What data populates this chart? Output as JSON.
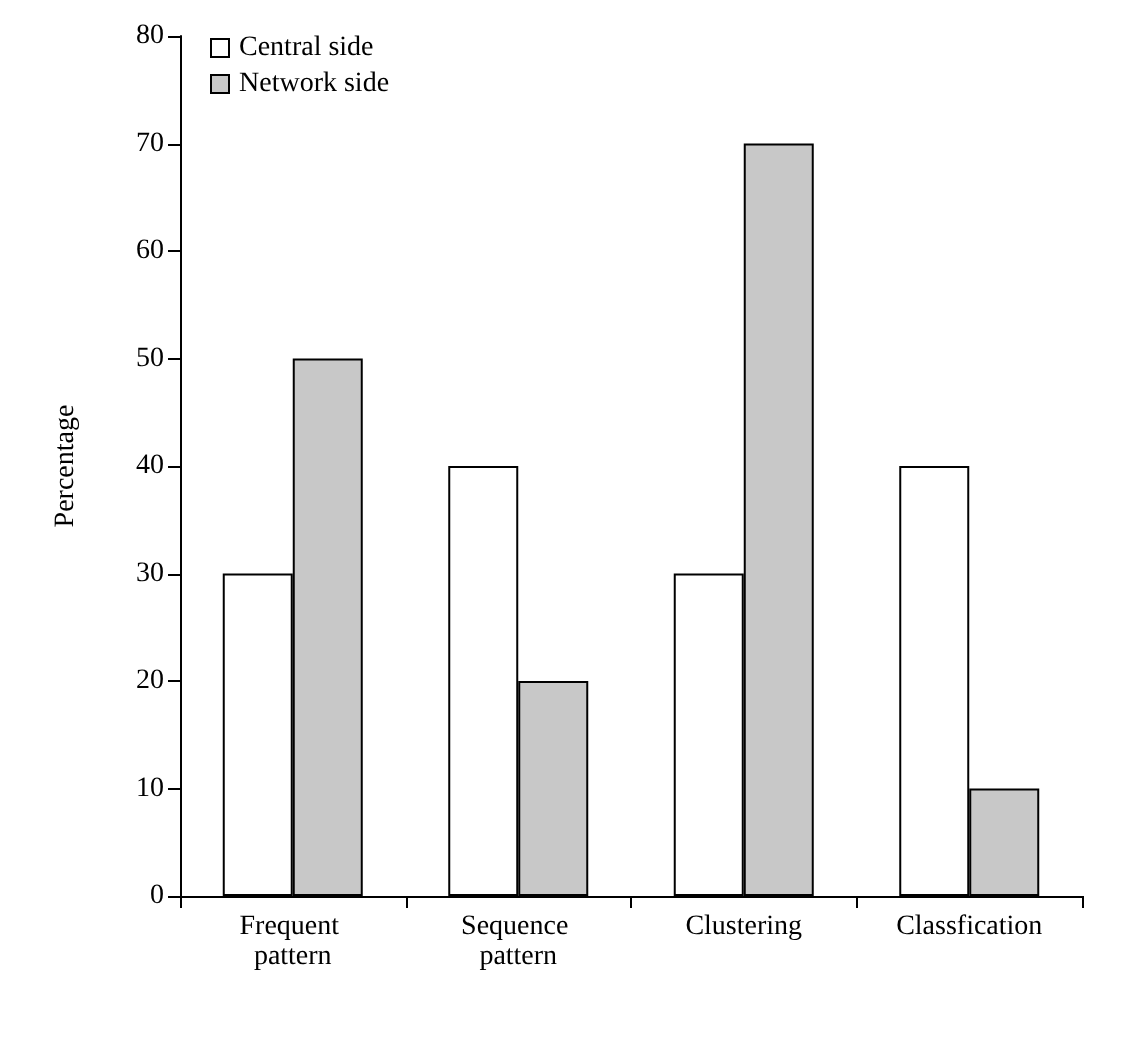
{
  "chart_data": {
    "type": "bar",
    "ylabel": "Percentage",
    "categories": [
      "Frequent pattern",
      "Sequence pattern",
      "Clustering",
      "Classfication"
    ],
    "series": [
      {
        "name": "Central side",
        "color": "#ffffff",
        "values": [
          30,
          40,
          30,
          40
        ]
      },
      {
        "name": "Network side",
        "color": "#c8c8c8",
        "values": [
          50,
          20,
          70,
          10
        ]
      }
    ],
    "ylim": [
      0,
      80
    ],
    "yticks": [
      0,
      10,
      20,
      30,
      40,
      50,
      60,
      70,
      80
    ],
    "grid": false,
    "legend": "top left"
  }
}
